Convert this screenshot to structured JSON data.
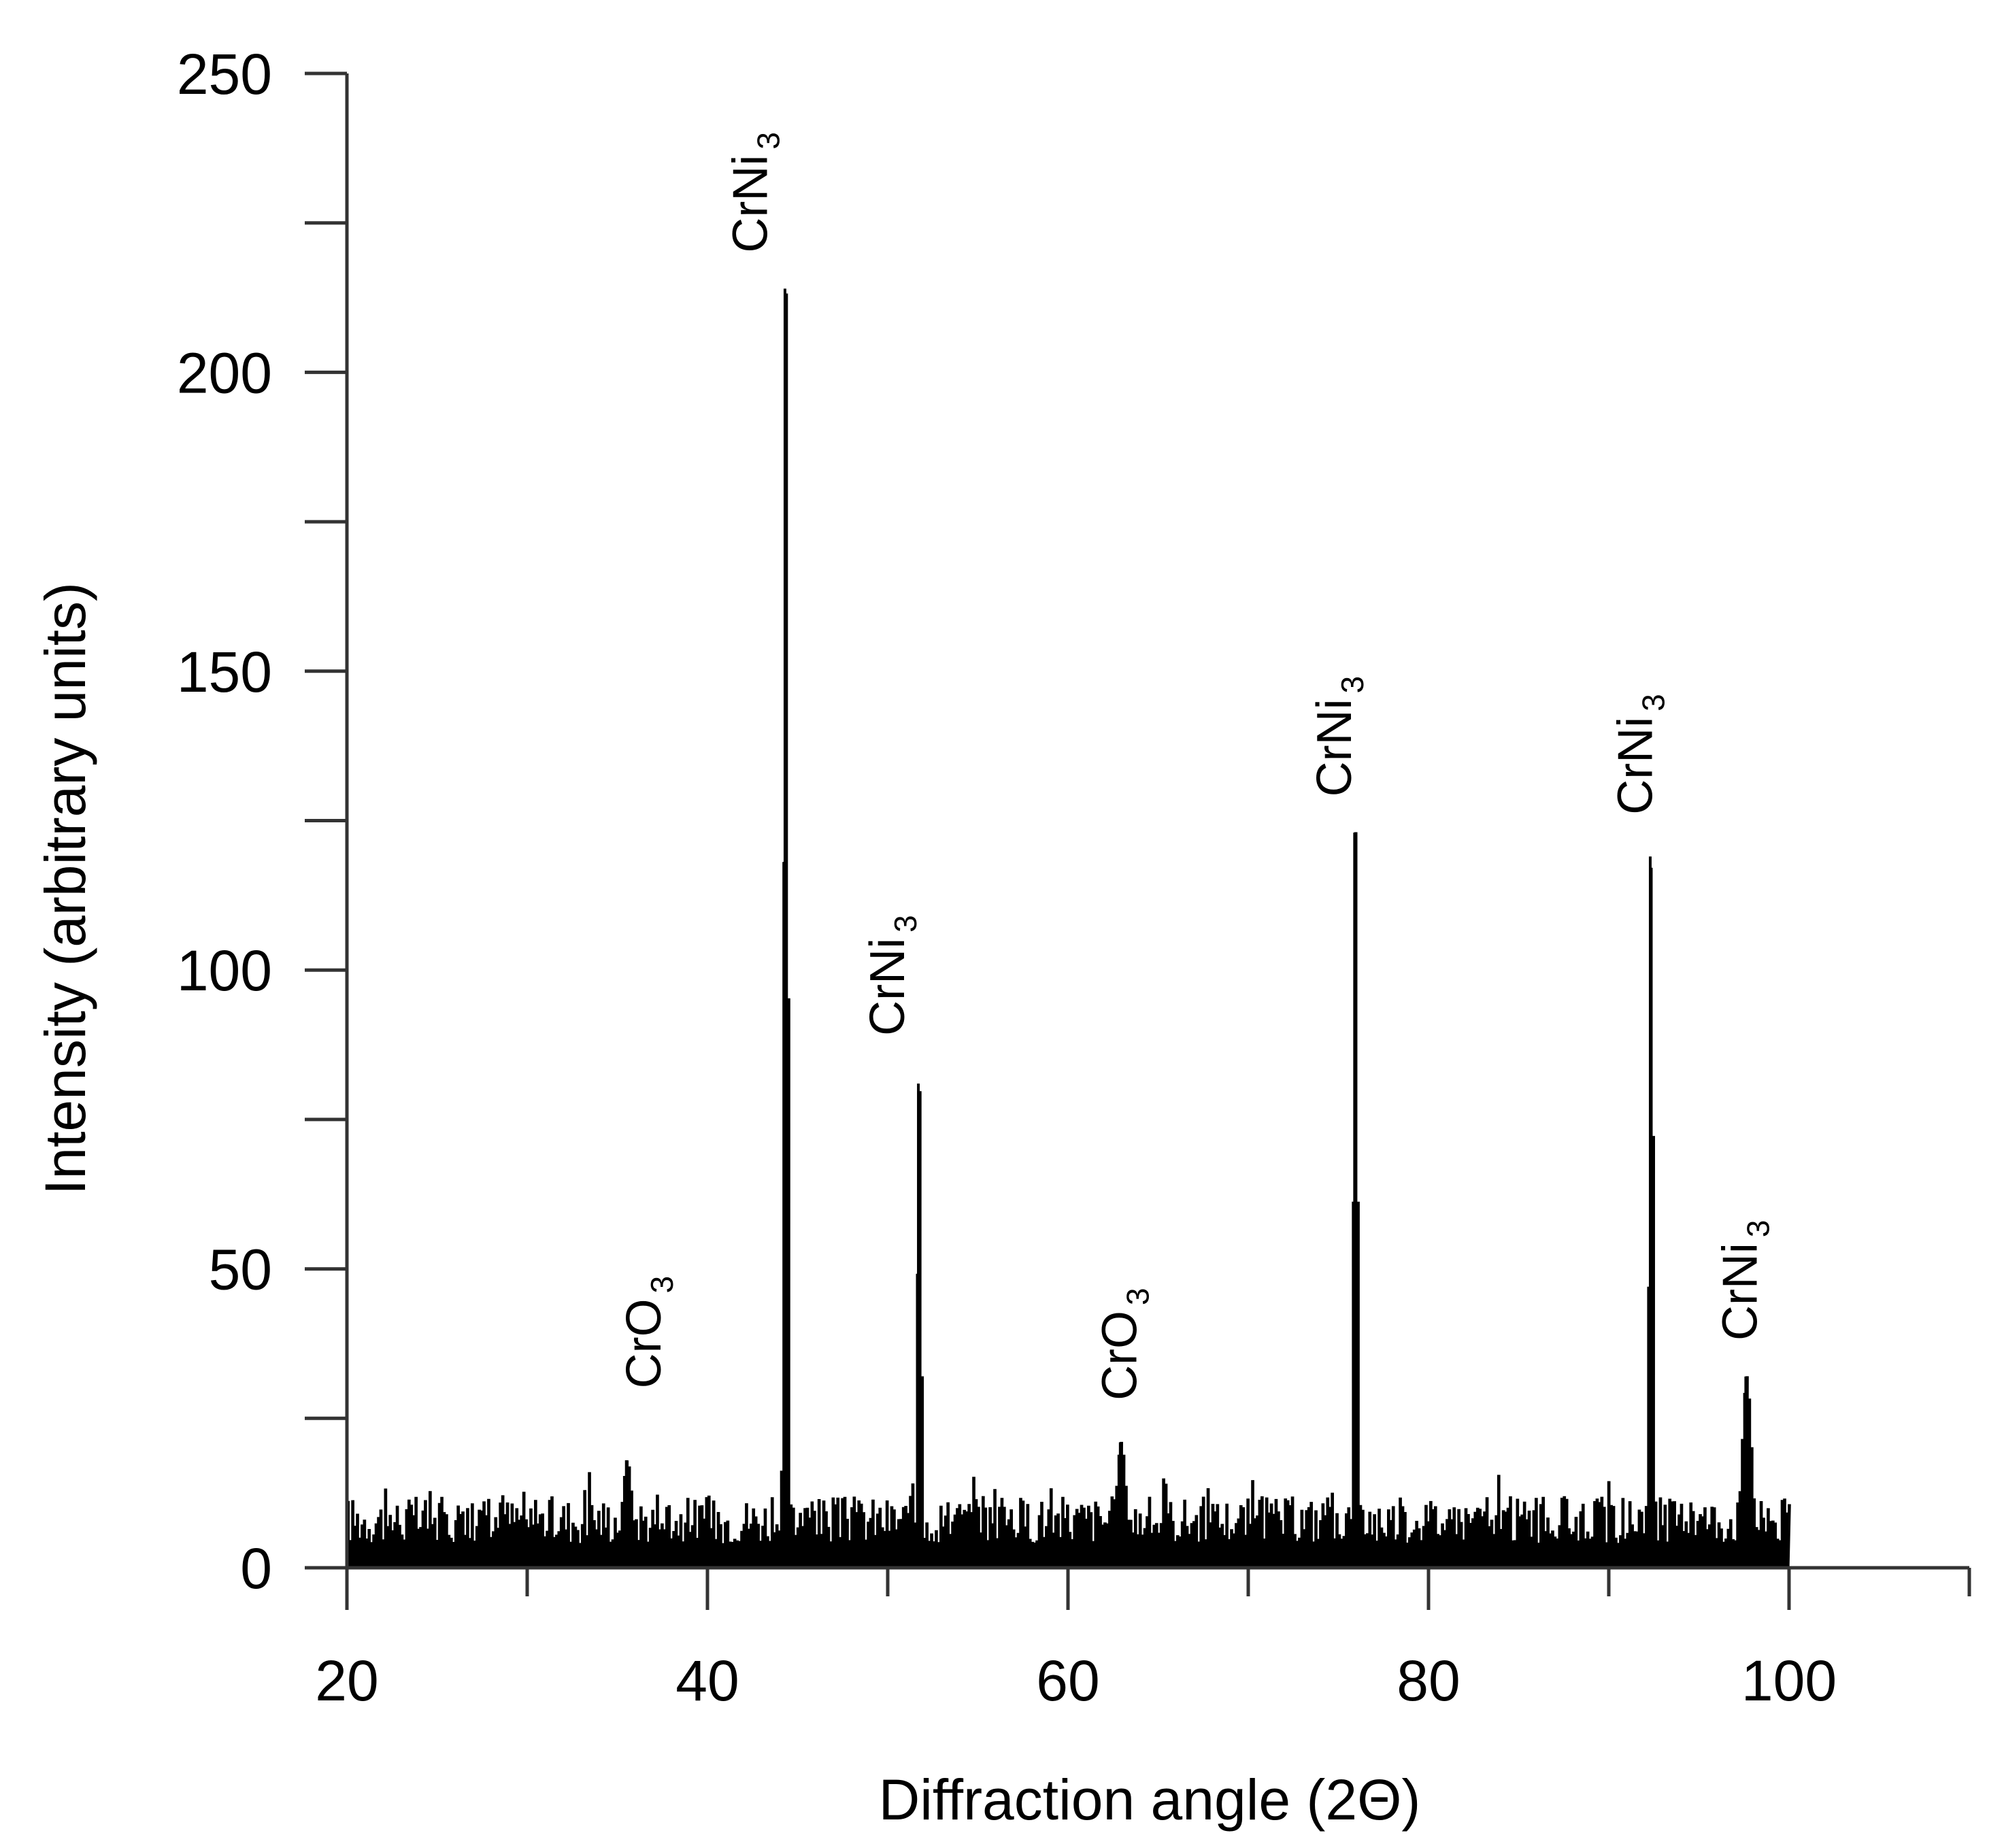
{
  "chart_data": {
    "type": "line",
    "title": "",
    "xlabel": "Diffraction angle  (2Θ)",
    "ylabel": "Intensity (arbitrary units)",
    "xlim": [
      20,
      110
    ],
    "ylim": [
      0,
      250
    ],
    "x_ticks": [
      20,
      40,
      60,
      80,
      100
    ],
    "x_minor_ticks": [
      30,
      50,
      70,
      90,
      110
    ],
    "y_ticks": [
      0,
      50,
      100,
      150,
      200,
      250
    ],
    "y_minor_ticks": [
      25,
      75,
      125,
      175,
      225
    ],
    "grid": false,
    "legend": null,
    "series_color": "#000000",
    "noise_level_range": [
      3,
      17
    ],
    "peaks": [
      {
        "x": 35.5,
        "y": 18
      },
      {
        "x": 44.3,
        "y": 214
      },
      {
        "x": 51.7,
        "y": 81
      },
      {
        "x": 62.9,
        "y": 21
      },
      {
        "x": 75.9,
        "y": 123
      },
      {
        "x": 92.3,
        "y": 119
      },
      {
        "x": 97.6,
        "y": 32
      }
    ],
    "annotations": [
      {
        "text": "CrO",
        "sub": "3",
        "x": 37.4,
        "y": 30
      },
      {
        "text": "CrNi",
        "sub": "3",
        "x": 43.3,
        "y": 220
      },
      {
        "text": "CrNi",
        "sub": "3",
        "x": 50.9,
        "y": 89
      },
      {
        "text": "CrO",
        "sub": "3",
        "x": 63.8,
        "y": 28
      },
      {
        "text": "CrNi",
        "sub": "3",
        "x": 75.7,
        "y": 129
      },
      {
        "text": "CrNi",
        "sub": "3",
        "x": 92.4,
        "y": 126
      },
      {
        "text": "CrNi",
        "sub": "3",
        "x": 98.2,
        "y": 38
      }
    ]
  }
}
